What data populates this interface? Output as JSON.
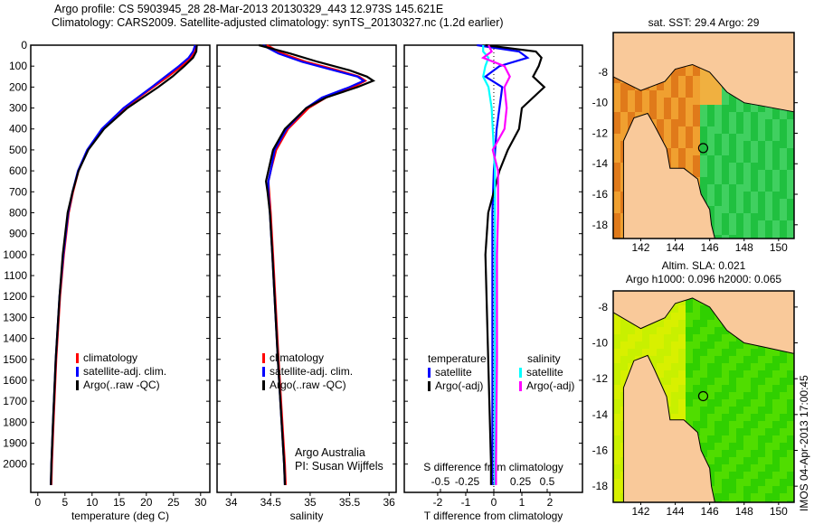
{
  "title_line1": "Argo profile: CS 5903945_28 28-Mar-2013 20130329_443 12.973S 145.621E",
  "title_line2": "Climatology: CARS2009. Satellite-adjusted climatology: synTS_20130327.nc (1.2d earlier)",
  "credit": "Argo Australia",
  "pi": "PI: Susan Wijffels",
  "timestamp": "IMOS 04-Apr-2013 17:00:45",
  "colors": {
    "climatology": "#ff0000",
    "satellite": "#0000ff",
    "argo": "#000000",
    "sal_satellite": "#00ffff",
    "sal_argo": "#ff00ff",
    "land": "#f9c99a"
  },
  "chart_data": [
    {
      "type": "line",
      "xlabel": "temperature (deg C)",
      "xlim": [
        -1.3,
        31.7
      ],
      "ylim": [
        0,
        2135
      ],
      "xticks": [
        0,
        5,
        10,
        15,
        20,
        25,
        30
      ],
      "yticks": [
        0,
        100,
        200,
        300,
        400,
        500,
        600,
        700,
        800,
        900,
        1000,
        1100,
        1200,
        1300,
        1400,
        1500,
        1600,
        1700,
        1800,
        1900,
        2000
      ],
      "legend": [
        "climatology",
        "satellite-adj. clim.",
        "Argo(..raw -QC)"
      ],
      "depth": [
        0,
        30,
        60,
        100,
        150,
        200,
        300,
        400,
        500,
        600,
        700,
        800,
        1000,
        1200,
        1500,
        1800,
        2000,
        2100
      ],
      "series": [
        {
          "name": "climatology",
          "values": [
            29.2,
            29.0,
            28.2,
            26.5,
            24.0,
            21.3,
            16.0,
            12.0,
            9.2,
            7.5,
            6.5,
            5.7,
            4.8,
            4.1,
            3.4,
            2.9,
            2.6,
            2.5
          ]
        },
        {
          "name": "satellite-adj. clim.",
          "values": [
            29.0,
            28.6,
            27.8,
            26.0,
            23.5,
            21.0,
            15.8,
            11.8,
            9.1,
            7.4,
            6.4,
            5.6,
            4.7,
            4.0,
            3.3,
            2.8,
            2.5,
            2.4
          ]
        },
        {
          "name": "Argo(..raw -QC)",
          "values": [
            29.3,
            29.2,
            28.6,
            27.0,
            24.8,
            22.2,
            16.5,
            12.2,
            9.3,
            7.5,
            6.4,
            5.5,
            4.6,
            4.0,
            3.3,
            2.8,
            2.5,
            2.4
          ]
        }
      ]
    },
    {
      "type": "line",
      "xlabel": "salinity",
      "xlim": [
        33.82,
        36.09
      ],
      "ylim": [
        0,
        2135
      ],
      "xticks": [
        34,
        34.5,
        35,
        35.5,
        36
      ],
      "legend": [
        "climatology",
        "satellite-adj. clim.",
        "Argo(..raw -QC)"
      ],
      "depth": [
        0,
        40,
        80,
        120,
        150,
        170,
        200,
        250,
        300,
        400,
        500,
        600,
        650,
        700,
        800,
        1000,
        1500,
        2000,
        2100
      ],
      "series": [
        {
          "name": "climatology",
          "values": [
            34.45,
            34.65,
            34.95,
            35.35,
            35.62,
            35.7,
            35.55,
            35.2,
            34.98,
            34.72,
            34.57,
            34.5,
            34.47,
            34.48,
            34.5,
            34.53,
            34.6,
            34.68,
            34.69
          ]
        },
        {
          "name": "satellite-adj. clim.",
          "values": [
            34.4,
            34.6,
            34.9,
            35.3,
            35.6,
            35.68,
            35.5,
            35.15,
            34.95,
            34.7,
            34.55,
            34.5,
            34.47,
            34.47,
            34.49,
            34.52,
            34.59,
            34.67,
            34.68
          ]
        },
        {
          "name": "Argo(..raw -QC)",
          "values": [
            34.35,
            34.75,
            35.1,
            35.5,
            35.72,
            35.8,
            35.6,
            35.2,
            34.95,
            34.68,
            34.53,
            34.47,
            34.44,
            34.46,
            34.49,
            34.52,
            34.59,
            34.67,
            34.68
          ]
        }
      ]
    },
    {
      "type": "line",
      "xlabel": "T difference from climatology",
      "x2label": "S difference from climatology",
      "xlim": [
        -3.19,
        3.16
      ],
      "ylim": [
        0,
        2135
      ],
      "xticks": [
        -2,
        -1,
        0,
        1,
        2
      ],
      "x2ticks": [
        -0.5,
        -0.25,
        0,
        0.25,
        0.5
      ],
      "x2tick_labels": [
        "-0.5",
        "-0.25",
        "0",
        "0.25",
        "0.5"
      ],
      "legend_titles": [
        "temperature",
        "salinity"
      ],
      "legend": [
        "satellite",
        "Argo(-adj)",
        "satellite",
        "Argo(-adj)"
      ],
      "depth": [
        0,
        30,
        60,
        100,
        150,
        200,
        300,
        400,
        500,
        600,
        800,
        1000,
        1500,
        2000,
        2100
      ],
      "series": [
        {
          "name": "T satellite",
          "axis": "T",
          "values": [
            -0.6,
            0.9,
            1.2,
            0.2,
            -0.3,
            0.3,
            0.2,
            0.1,
            0.05,
            0.0,
            -0.05,
            -0.05,
            -0.05,
            -0.05,
            -0.05
          ]
        },
        {
          "name": "T Argo(-adj)",
          "axis": "T",
          "values": [
            -0.3,
            1.5,
            1.7,
            1.6,
            1.4,
            1.8,
            1.0,
            0.9,
            0.5,
            0.2,
            -0.2,
            -0.3,
            -0.2,
            -0.1,
            -0.1
          ]
        },
        {
          "name": "S satellite",
          "axis": "S",
          "values": [
            -0.1,
            -0.1,
            -0.05,
            -0.08,
            -0.1,
            -0.05,
            -0.02,
            -0.01,
            0.0,
            0.01,
            0.01,
            0.01,
            0.01,
            0.01,
            0.01
          ]
        },
        {
          "name": "S Argo(-adj)",
          "axis": "S",
          "values": [
            -0.05,
            -0.02,
            -0.1,
            0.1,
            0.15,
            0.1,
            0.12,
            0.1,
            -0.01,
            0.04,
            0.04,
            0.03,
            0.03,
            0.02,
            0.02
          ]
        }
      ]
    },
    {
      "type": "heatmap",
      "title": "sat. SST: 29.4  Argo: 29",
      "xlim": [
        140.4,
        150.9
      ],
      "ylim": [
        -18.9,
        -5.4
      ],
      "xticks": [
        142,
        144,
        146,
        148,
        150
      ],
      "yticks": [
        -8,
        -10,
        -12,
        -14,
        -16,
        -18
      ],
      "marker": [
        145.621,
        -12.973
      ]
    },
    {
      "type": "heatmap",
      "title": "Altim. SLA: 0.021",
      "subtitle": "Argo h1000: 0.096 h2000: 0.065",
      "xlim": [
        140.4,
        150.9
      ],
      "ylim": [
        -18.9,
        -7.1
      ],
      "xticks": [
        142,
        144,
        146,
        148,
        150
      ],
      "yticks": [
        -8,
        -10,
        -12,
        -14,
        -16,
        -18
      ],
      "marker": [
        145.621,
        -12.973
      ]
    }
  ]
}
